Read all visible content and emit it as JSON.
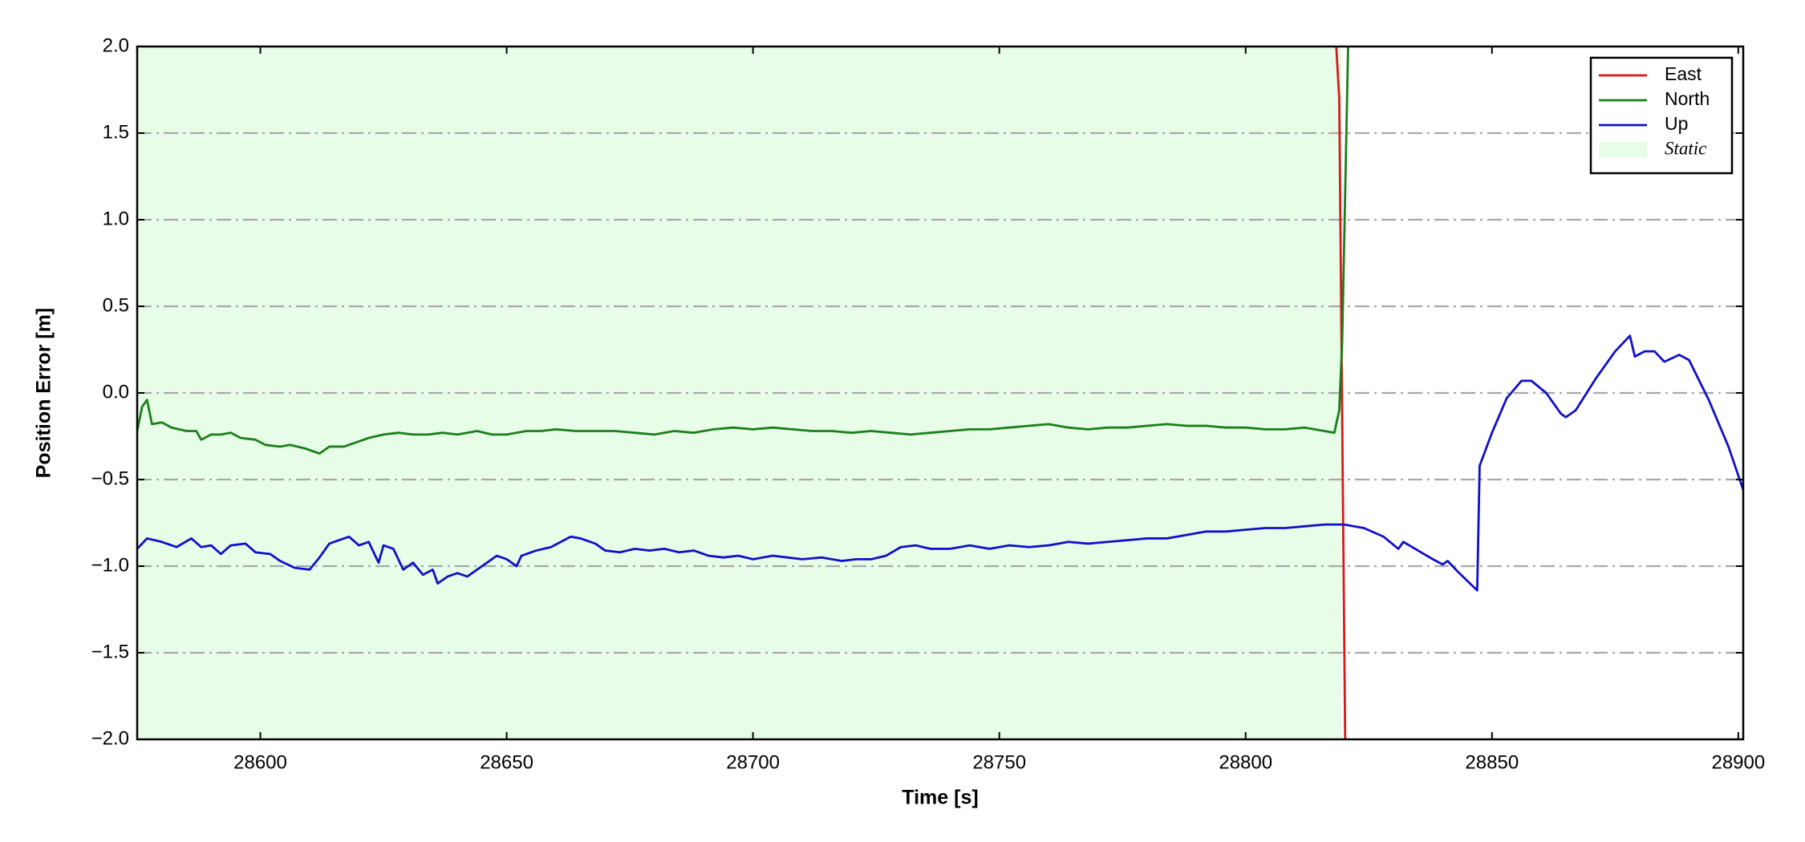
{
  "chart_data": {
    "type": "line",
    "x_label": "Time [s]",
    "y_label": "Position Error [m]",
    "xlim": [
      28575,
      28901
    ],
    "ylim": [
      -2.0,
      2.0
    ],
    "xticks": [
      28600,
      28650,
      28700,
      28750,
      28800,
      28850,
      28900
    ],
    "yticks": [
      {
        "value": -2.0,
        "label": "−2.0"
      },
      {
        "value": -1.5,
        "label": "−1.5"
      },
      {
        "value": -1.0,
        "label": "−1.0"
      },
      {
        "value": -0.5,
        "label": "−0.5"
      },
      {
        "value": 0,
        "label": "0.0"
      },
      0.5,
      {
        "value": 1.0,
        "label": "1.0"
      },
      1.5,
      {
        "value": 2.0,
        "label": "2.0"
      }
    ],
    "grid": true,
    "legend": "upper right",
    "static_span": {
      "label": "Static",
      "start": 28575,
      "end": 28819.5,
      "color": "#e8fde8"
    },
    "series": [
      {
        "name": "East",
        "color": "#d7191c",
        "x": [
          28818.4,
          28819,
          28820.2
        ],
        "values": [
          2.0,
          1.7,
          -2.0
        ]
      },
      {
        "name": "North",
        "color": "#1a7f1a",
        "x": [
          28575,
          28576,
          28577,
          28578,
          28580,
          28582,
          28585,
          28587,
          28588,
          28590,
          28592,
          28594,
          28596,
          28599,
          28601,
          28604,
          28606,
          28609,
          28612,
          28614,
          28617,
          28620,
          28622,
          28625,
          28628,
          28631,
          28634,
          28637,
          28640,
          28644,
          28647,
          28650,
          28654,
          28657,
          28660,
          28664,
          28668,
          28672,
          28676,
          28680,
          28684,
          28688,
          28692,
          28696,
          28700,
          28704,
          28708,
          28712,
          28716,
          28720,
          28724,
          28728,
          28732,
          28736,
          28740,
          28744,
          28748,
          28752,
          28756,
          28760,
          28764,
          28768,
          28772,
          28776,
          28780,
          28784,
          28788,
          28792,
          28796,
          28800,
          28804,
          28808,
          28812,
          28816,
          28818,
          28819,
          28819.6,
          28820.8
        ],
        "values": [
          -0.22,
          -0.08,
          -0.04,
          -0.18,
          -0.17,
          -0.2,
          -0.22,
          -0.22,
          -0.27,
          -0.24,
          -0.24,
          -0.23,
          -0.26,
          -0.27,
          -0.3,
          -0.31,
          -0.3,
          -0.32,
          -0.35,
          -0.31,
          -0.31,
          -0.28,
          -0.26,
          -0.24,
          -0.23,
          -0.24,
          -0.24,
          -0.23,
          -0.24,
          -0.22,
          -0.24,
          -0.24,
          -0.22,
          -0.22,
          -0.21,
          -0.22,
          -0.22,
          -0.22,
          -0.23,
          -0.24,
          -0.22,
          -0.23,
          -0.21,
          -0.2,
          -0.21,
          -0.2,
          -0.21,
          -0.22,
          -0.22,
          -0.23,
          -0.22,
          -0.23,
          -0.24,
          -0.23,
          -0.22,
          -0.21,
          -0.21,
          -0.2,
          -0.19,
          -0.18,
          -0.2,
          -0.21,
          -0.2,
          -0.2,
          -0.19,
          -0.18,
          -0.19,
          -0.19,
          -0.2,
          -0.2,
          -0.21,
          -0.21,
          -0.2,
          -0.22,
          -0.23,
          -0.1,
          0.3,
          2.0
        ]
      },
      {
        "name": "Up",
        "color": "#1010c8",
        "x": [
          28575,
          28577,
          28580,
          28583,
          28586,
          28588,
          28590,
          28592,
          28594,
          28597,
          28599,
          28602,
          28604,
          28607,
          28610,
          28612,
          28614,
          28616,
          28618,
          28620,
          28622,
          28624,
          28625,
          28627,
          28629,
          28631,
          28633,
          28635,
          28636,
          28638,
          28640,
          28642,
          28644,
          28646,
          28648,
          28650,
          28652,
          28653,
          28656,
          28659,
          28661,
          28663,
          28665,
          28668,
          28670,
          28673,
          28676,
          28679,
          28682,
          28685,
          28688,
          28691,
          28694,
          28697,
          28700,
          28704,
          28707,
          28710,
          28714,
          28718,
          28721,
          28724,
          28727,
          28730,
          28733,
          28736,
          28740,
          28744,
          28748,
          28752,
          28756,
          28760,
          28764,
          28768,
          28772,
          28776,
          28780,
          28784,
          28788,
          28792,
          28796,
          28800,
          28804,
          28808,
          28812,
          28816,
          28820,
          28824,
          28828,
          28831,
          28832,
          28835,
          28838,
          28840,
          28841,
          28843,
          28847,
          28847.5,
          28850,
          28853,
          28856,
          28858,
          28861,
          28864,
          28865,
          28867,
          28871,
          28875,
          28878,
          28879,
          28881,
          28883,
          28885,
          28888,
          28890,
          28894,
          28898,
          28901
        ],
        "values": [
          -0.9,
          -0.84,
          -0.86,
          -0.89,
          -0.84,
          -0.89,
          -0.88,
          -0.93,
          -0.88,
          -0.87,
          -0.92,
          -0.93,
          -0.97,
          -1.01,
          -1.02,
          -0.95,
          -0.87,
          -0.85,
          -0.83,
          -0.88,
          -0.86,
          -0.98,
          -0.88,
          -0.9,
          -1.02,
          -0.98,
          -1.05,
          -1.02,
          -1.1,
          -1.06,
          -1.04,
          -1.06,
          -1.02,
          -0.98,
          -0.94,
          -0.96,
          -1.0,
          -0.94,
          -0.91,
          -0.89,
          -0.86,
          -0.83,
          -0.84,
          -0.87,
          -0.91,
          -0.92,
          -0.9,
          -0.91,
          -0.9,
          -0.92,
          -0.91,
          -0.94,
          -0.95,
          -0.94,
          -0.96,
          -0.94,
          -0.95,
          -0.96,
          -0.95,
          -0.97,
          -0.96,
          -0.96,
          -0.94,
          -0.89,
          -0.88,
          -0.9,
          -0.9,
          -0.88,
          -0.9,
          -0.88,
          -0.89,
          -0.88,
          -0.86,
          -0.87,
          -0.86,
          -0.85,
          -0.84,
          -0.84,
          -0.82,
          -0.8,
          -0.8,
          -0.79,
          -0.78,
          -0.78,
          -0.77,
          -0.76,
          -0.76,
          -0.78,
          -0.83,
          -0.9,
          -0.86,
          -0.91,
          -0.96,
          -0.99,
          -0.97,
          -1.03,
          -1.14,
          -0.42,
          -0.23,
          -0.03,
          0.07,
          0.07,
          0.0,
          -0.12,
          -0.14,
          -0.1,
          0.08,
          0.24,
          0.33,
          0.21,
          0.24,
          0.24,
          0.18,
          0.22,
          0.19,
          -0.04,
          -0.31,
          -0.56
        ]
      }
    ]
  }
}
